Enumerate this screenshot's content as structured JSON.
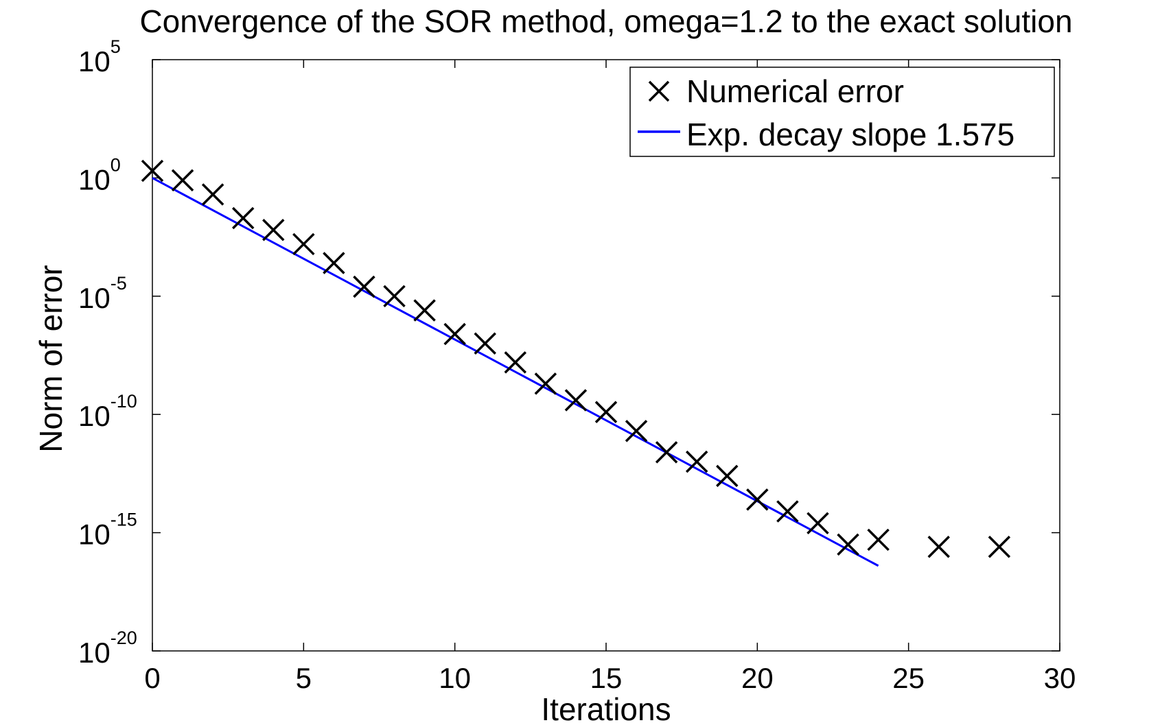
{
  "chart_data": {
    "type": "scatter",
    "title": "Convergence of the SOR method, omega=1.2 to the exact solution",
    "xlabel": "Iterations",
    "ylabel": "Norm of error",
    "xlim": [
      0,
      30
    ],
    "ylim_log10": [
      -20,
      5
    ],
    "yscale": "log",
    "grid": false,
    "legend_position": "top-right",
    "x_ticks": [
      0,
      5,
      10,
      15,
      20,
      25,
      30
    ],
    "y_ticks": [
      {
        "base": "10",
        "exp": "5",
        "value": 5
      },
      {
        "base": "10",
        "exp": "0",
        "value": 0
      },
      {
        "base": "10",
        "exp": "-5",
        "value": -5
      },
      {
        "base": "10",
        "exp": "-10",
        "value": -10
      },
      {
        "base": "10",
        "exp": "-15",
        "value": -15
      },
      {
        "base": "10",
        "exp": "-20",
        "value": -20
      }
    ],
    "series": [
      {
        "name": "Numerical error",
        "kind": "markers",
        "marker": "x",
        "color": "#000000",
        "x": [
          0,
          1,
          2,
          3,
          4,
          5,
          6,
          7,
          8,
          9,
          10,
          11,
          12,
          13,
          14,
          15,
          16,
          17,
          18,
          19,
          20,
          21,
          22,
          23,
          24,
          26,
          28
        ],
        "y_log10": [
          0.3,
          -0.1,
          -0.7,
          -1.7,
          -2.2,
          -2.8,
          -3.6,
          -4.6,
          -5.0,
          -5.6,
          -6.6,
          -7.0,
          -7.8,
          -8.7,
          -9.4,
          -9.9,
          -10.7,
          -11.6,
          -12.0,
          -12.6,
          -13.6,
          -14.1,
          -14.6,
          -15.5,
          -15.3,
          -15.6,
          -15.6
        ]
      },
      {
        "name": "Exp. decay slope 1.575",
        "kind": "line",
        "color": "#0000ff",
        "x": [
          0,
          24
        ],
        "y_log10": [
          0.0,
          -16.4
        ]
      }
    ]
  }
}
